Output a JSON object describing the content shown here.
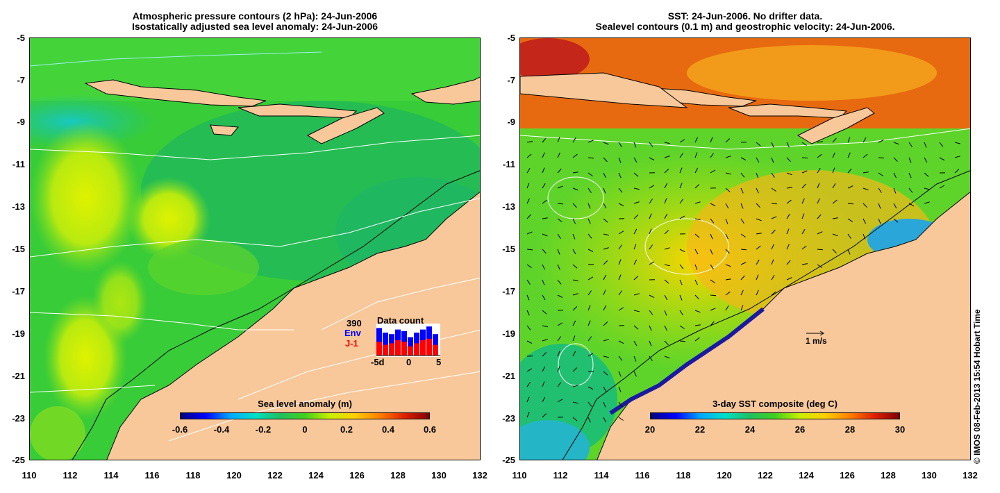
{
  "left_panel": {
    "title_line1": "Atmospheric pressure contours (2 hPa): 24-Jun-2006",
    "title_line2": "Isostatically adjusted sea level anomaly: 24-Jun-2006",
    "legend_title": "Sea level anomaly (m)",
    "colorbar_ticks": [
      "-0.6",
      "-0.4",
      "-0.2",
      "0",
      "0.2",
      "0.4",
      "0.6"
    ],
    "data_count": {
      "title": "Data count",
      "total": "390",
      "env_label": "Env",
      "j1_label": "J-1",
      "xticks": [
        "-5d",
        "0",
        "5"
      ],
      "env_color": "#0000ff",
      "j1_color": "#ff0000"
    }
  },
  "right_panel": {
    "title_line1": "SST: 24-Jun-2006. No drifter data.",
    "title_line2": "Sealevel contours (0.1 m) and geostrophic velocity: 24-Jun-2006.",
    "legend_title": "3-day SST composite (deg C)",
    "colorbar_ticks": [
      "20",
      "22",
      "24",
      "26",
      "28",
      "30"
    ],
    "velocity_scale_label": "1 m/s"
  },
  "axes": {
    "lat_ticks": [
      "-5",
      "-7",
      "-9",
      "-11",
      "-13",
      "-15",
      "-17",
      "-19",
      "-21",
      "-23",
      "-25"
    ],
    "lon_ticks": [
      "110",
      "112",
      "114",
      "116",
      "118",
      "120",
      "122",
      "124",
      "126",
      "128",
      "130",
      "132"
    ]
  },
  "colors": {
    "land": "#f8c89a",
    "ocean_green": "#22c23a",
    "coastline": "#000000"
  },
  "credit": "© IMOS 08-Feb-2013 15:54 Hobart Time"
}
